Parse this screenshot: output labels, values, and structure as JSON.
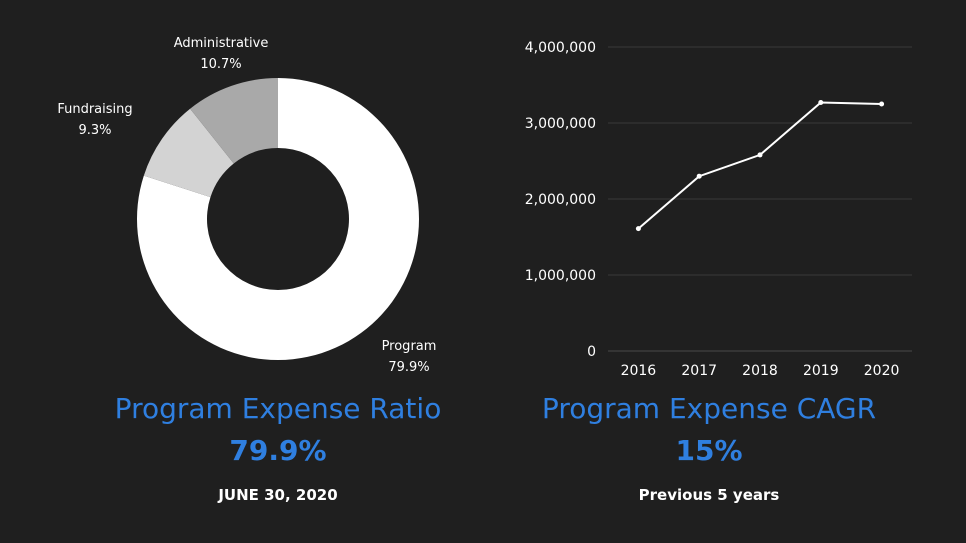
{
  "chart_data": [
    {
      "type": "pie",
      "subtype": "donut",
      "slices": [
        {
          "label": "Program",
          "value": 79.9,
          "display": "79.9%"
        },
        {
          "label": "Fundraising",
          "value": 9.3,
          "display": "9.3%"
        },
        {
          "label": "Administrative",
          "value": 10.7,
          "display": "10.7%"
        }
      ],
      "colors": [
        "#ffffff",
        "#d3d3d3",
        "#a9a9a9"
      ]
    },
    {
      "type": "line",
      "x": [
        2016,
        2017,
        2018,
        2019,
        2020
      ],
      "categories": [
        "2016",
        "2017",
        "2018",
        "2019",
        "2020"
      ],
      "series": [
        {
          "values": [
            1610000,
            2300000,
            2580000,
            3270000,
            3250000
          ]
        }
      ],
      "ylim": [
        0,
        4000000
      ],
      "yticks": [
        0,
        1000000,
        2000000,
        3000000,
        4000000
      ],
      "ytick_labels": [
        "0",
        "1,000,000",
        "2,000,000",
        "3,000,000",
        "4,000,000"
      ],
      "grid": true,
      "line_color": "#ffffff",
      "grid_color": "#3a3a3a"
    }
  ],
  "kpis": {
    "ratio": {
      "title": "Program Expense Ratio",
      "value": "79.9%",
      "date": "JUNE 30, 2020"
    },
    "cagr": {
      "title": "Program Expense CAGR",
      "value": "15%",
      "period": "Previous 5 years"
    }
  },
  "colors": {
    "background": "#1f1f1f",
    "accent": "#2f7fe0",
    "text": "#ffffff"
  }
}
